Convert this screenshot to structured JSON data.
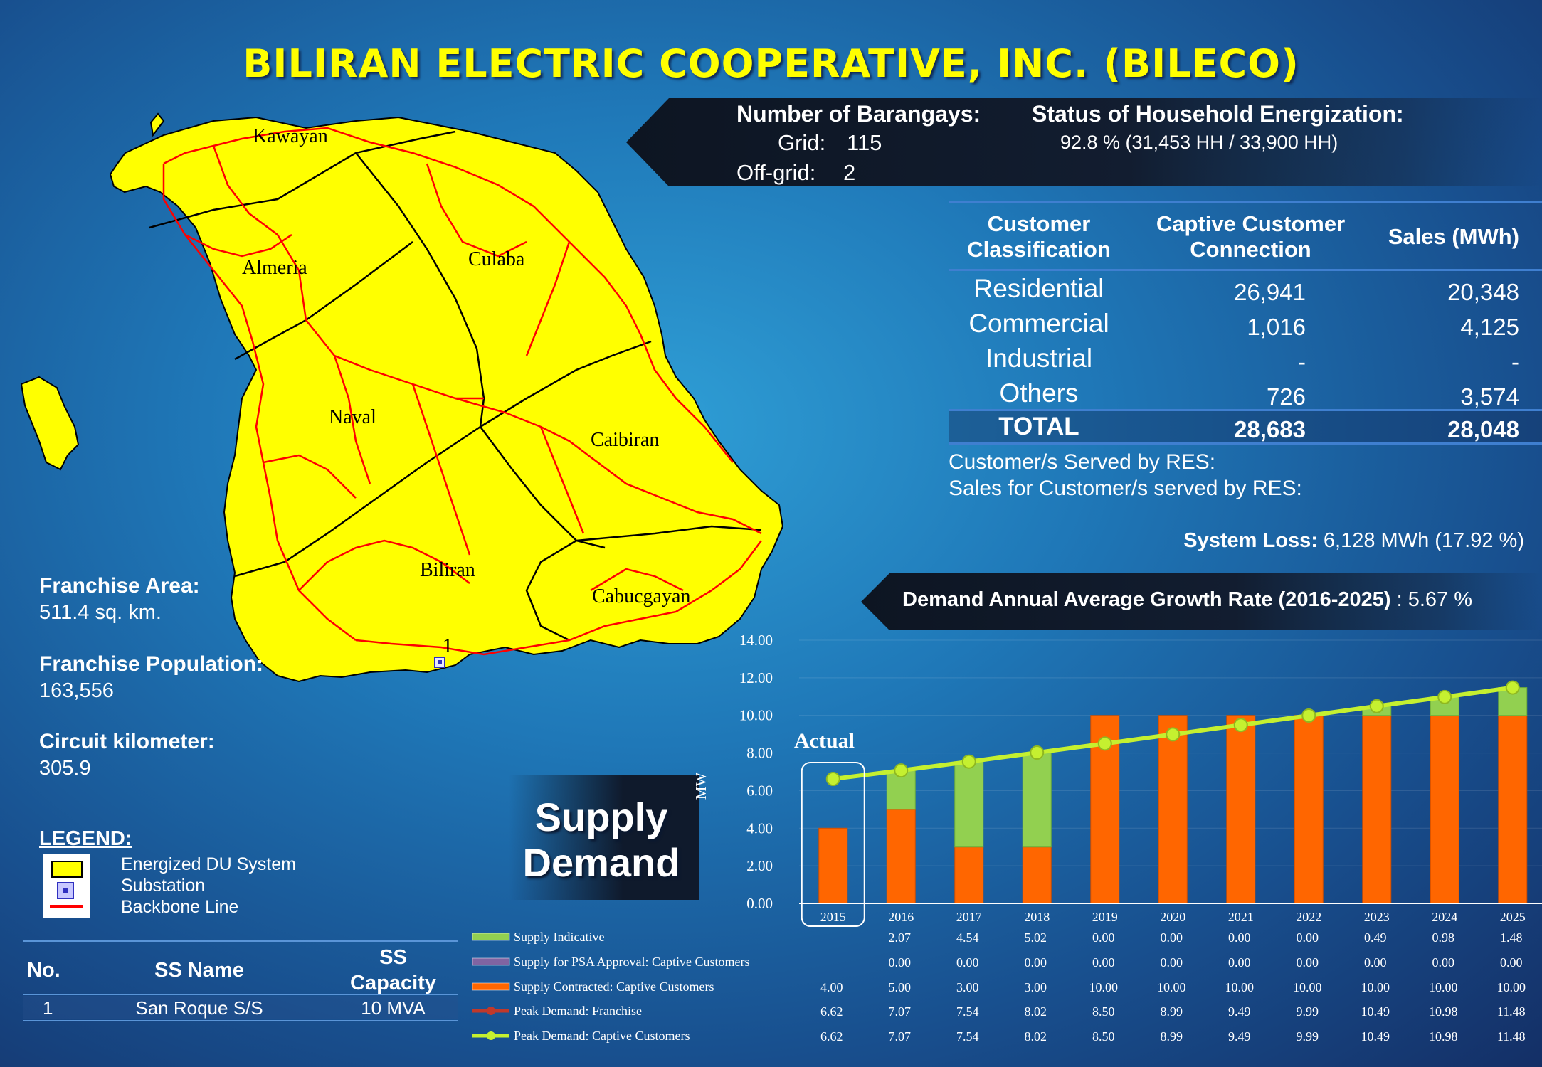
{
  "title": "BILIRAN ELECTRIC COOPERATIVE, INC. (BILECO)",
  "barangays": {
    "heading": "Number of Barangays:",
    "grid_label": "Grid:",
    "grid_value": "115",
    "offgrid_label": "Off-grid:",
    "offgrid_value": "2"
  },
  "energization": {
    "heading": "Status of Household Energization:",
    "value": "92.8 % (31,453 HH / 33,900 HH)"
  },
  "customer_table": {
    "headers": {
      "classification_1": "Customer",
      "classification_2": "Classification",
      "connection_1": "Captive Customer",
      "connection_2": "Connection",
      "sales": "Sales (MWh)"
    },
    "rows": [
      {
        "name": "Residential",
        "connection": "26,941",
        "sales": "20,348"
      },
      {
        "name": "Commercial",
        "connection": "1,016",
        "sales": "4,125"
      },
      {
        "name": "Industrial",
        "connection": "-",
        "sales": "-"
      },
      {
        "name": "Others",
        "connection": "726",
        "sales": "3,574"
      }
    ],
    "total": {
      "name": "TOTAL",
      "connection": "28,683",
      "sales": "28,048"
    }
  },
  "res": {
    "served": "Customer/s Served by RES:",
    "sales": "Sales for Customer/s served by RES:"
  },
  "system_loss": {
    "label": "System Loss:",
    "value": "6,128 MWh (17.92 %)"
  },
  "growth": {
    "label": "Demand Annual Average Growth Rate (2016-2025)",
    "value": ": 5.67 %"
  },
  "franchise": {
    "area_label": "Franchise Area:",
    "area_value": "511.4 sq. km.",
    "population_label": "Franchise Population:",
    "population_value": "163,556",
    "circuit_label": "Circuit kilometer:",
    "circuit_value": "305.9"
  },
  "map": {
    "towns": [
      "Kawayan",
      "Almeria",
      "Culaba",
      "Naval",
      "Caibiran",
      "Biliran",
      "Cabucgayan"
    ],
    "substation_marker": "1",
    "colors": {
      "land": "#ffff00",
      "backbone": "#ff0000",
      "border": "#000000"
    }
  },
  "legend": {
    "title": "LEGEND:",
    "items": [
      {
        "label": "Energized DU System",
        "icon": "yellow-box-icon"
      },
      {
        "label": "Substation",
        "icon": "substation-icon"
      },
      {
        "label": "Backbone Line",
        "icon": "red-line-icon"
      }
    ]
  },
  "substations": {
    "headers": {
      "no": "No.",
      "name": "SS Name",
      "capacity_1": "SS",
      "capacity_2": "Capacity"
    },
    "rows": [
      {
        "no": "1",
        "name": "San Roque S/S",
        "capacity": "10 MVA"
      }
    ]
  },
  "supply_demand_label": {
    "line1": "Supply",
    "line2": "Demand"
  },
  "chart_data": {
    "type": "bar",
    "ylabel": "MW",
    "ylim": [
      0,
      14
    ],
    "yticks": [
      "0.00",
      "2.00",
      "4.00",
      "6.00",
      "8.00",
      "10.00",
      "12.00",
      "14.00"
    ],
    "categories": [
      "2015",
      "2016",
      "2017",
      "2018",
      "2019",
      "2020",
      "2021",
      "2022",
      "2023",
      "2024",
      "2025"
    ],
    "annotation": "Actual",
    "series": [
      {
        "name": "Supply Indicative",
        "kind": "stacked-bar",
        "color": "#92d050",
        "values": [
          null,
          2.07,
          4.54,
          5.02,
          0.0,
          0.0,
          0.0,
          0.0,
          0.49,
          0.98,
          1.48
        ],
        "labels": [
          "",
          "2.07",
          "4.54",
          "5.02",
          "0.00",
          "0.00",
          "0.00",
          "0.00",
          "0.49",
          "0.98",
          "1.48"
        ]
      },
      {
        "name": "Supply for PSA Approval:  Captive Customers",
        "kind": "stacked-bar",
        "color": "#8064a2",
        "values": [
          null,
          0.0,
          0.0,
          0.0,
          0.0,
          0.0,
          0.0,
          0.0,
          0.0,
          0.0,
          0.0
        ],
        "labels": [
          "",
          "0.00",
          "0.00",
          "0.00",
          "0.00",
          "0.00",
          "0.00",
          "0.00",
          "0.00",
          "0.00",
          "0.00"
        ]
      },
      {
        "name": "Supply Contracted:  Captive Customers",
        "kind": "stacked-bar",
        "color": "#ff6600",
        "values": [
          4.0,
          5.0,
          3.0,
          3.0,
          10.0,
          10.0,
          10.0,
          10.0,
          10.0,
          10.0,
          10.0
        ],
        "labels": [
          "4.00",
          "5.00",
          "3.00",
          "3.00",
          "10.00",
          "10.00",
          "10.00",
          "10.00",
          "10.00",
          "10.00",
          "10.00"
        ]
      },
      {
        "name": "Peak Demand:  Franchise",
        "kind": "line",
        "color": "#c0392b",
        "values": [
          6.62,
          7.07,
          7.54,
          8.02,
          8.5,
          8.99,
          9.49,
          9.99,
          10.49,
          10.98,
          11.48
        ],
        "labels": [
          "6.62",
          "7.07",
          "7.54",
          "8.02",
          "8.50",
          "8.99",
          "9.49",
          "9.99",
          "10.49",
          "10.98",
          "11.48"
        ]
      },
      {
        "name": "Peak Demand:  Captive Customers",
        "kind": "line",
        "color": "#c5f030",
        "values": [
          6.62,
          7.07,
          7.54,
          8.02,
          8.5,
          8.99,
          9.49,
          9.99,
          10.49,
          10.98,
          11.48
        ],
        "labels": [
          "6.62",
          "7.07",
          "7.54",
          "8.02",
          "8.50",
          "8.99",
          "9.49",
          "9.99",
          "10.49",
          "10.98",
          "11.48"
        ]
      }
    ]
  }
}
